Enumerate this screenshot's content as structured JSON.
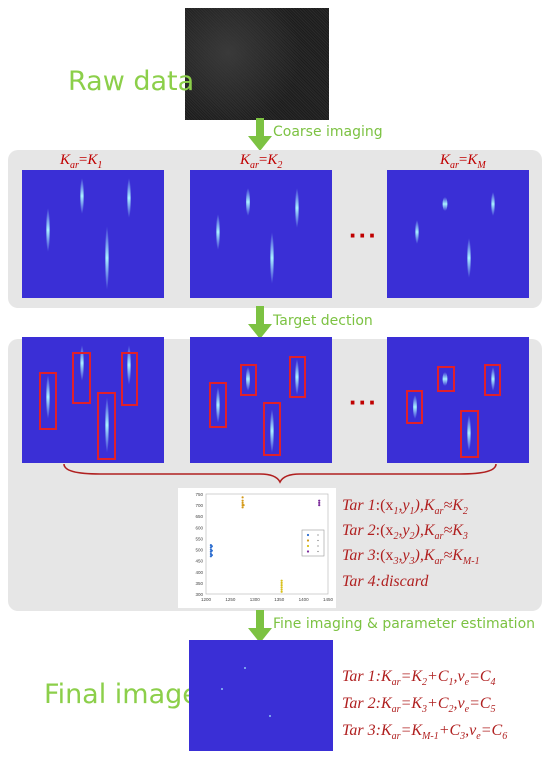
{
  "labels": {
    "raw_data": "Raw data",
    "final_image": "Final image",
    "coarse_imaging": "Coarse imaging",
    "target_detection": "Target dection",
    "fine_imaging": "Fine imaging & parameter estimation",
    "ellipsis": "···"
  },
  "k_labels": [
    {
      "K": "K",
      "ar": "ar",
      "eq": "=",
      "K2": "K",
      "sub": "1"
    },
    {
      "K": "K",
      "ar": "ar",
      "eq": "=",
      "K2": "K",
      "sub": "2"
    },
    {
      "K": "K",
      "ar": "ar",
      "eq": "=",
      "K2": "K",
      "sub": "M"
    }
  ],
  "targets": [
    {
      "name": "Tar 1",
      "coord": ":(x",
      "c1": "1",
      "mid": ",y",
      "c2": "1",
      "close": "),",
      "k": "K",
      "ks": "ar",
      "approx": "≈K",
      "kv": "2"
    },
    {
      "name": "Tar 2",
      "coord": ":(x",
      "c1": "2",
      "mid": ",y",
      "c2": "2",
      "close": "),",
      "k": "K",
      "ks": "ar",
      "approx": "≈K",
      "kv": "3"
    },
    {
      "name": "Tar 3",
      "coord": ":(x",
      "c1": "3",
      "mid": ",y",
      "c2": "3",
      "close": "),",
      "k": "K",
      "ks": "ar",
      "approx": "≈K",
      "kv": "M-1"
    },
    {
      "name": "Tar 4",
      "discard": ":discard"
    }
  ],
  "final_targets": [
    {
      "name": "Tar 1",
      "a": ":K",
      "as": "ar",
      "b": "=K",
      "bs": "2",
      "c": "+C",
      "cs": "1",
      "d": ",v",
      "ds": "e",
      "e": "=C",
      "es": "4"
    },
    {
      "name": "Tar 2",
      "a": ":K",
      "as": "ar",
      "b": "=K",
      "bs": "3",
      "c": "+C",
      "cs": "2",
      "d": ",v",
      "ds": "e",
      "e": "=C",
      "es": "5"
    },
    {
      "name": "Tar 3",
      "a": ":K",
      "as": "ar",
      "b": "=K",
      "bs": "M-1",
      "c": "+C",
      "cs": "3",
      "d": ",v",
      "ds": "e",
      "e": "=C",
      "es": "6"
    }
  ],
  "scatter": {
    "x_ticks": [
      "1200",
      "1250",
      "1300",
      "1350",
      "1400",
      "1450"
    ],
    "y_ticks": [
      "300",
      "350",
      "400",
      "450",
      "500",
      "550",
      "600",
      "650",
      "700",
      "750"
    ],
    "series": [
      {
        "color": "#2f6fd0",
        "points": [
          [
            1210,
            470
          ],
          [
            1210,
            480
          ],
          [
            1210,
            490
          ],
          [
            1210,
            500
          ],
          [
            1210,
            510
          ],
          [
            1210,
            520
          ],
          [
            1212,
            475
          ],
          [
            1212,
            495
          ],
          [
            1212,
            515
          ]
        ]
      },
      {
        "color": "#d49a1a",
        "points": [
          [
            1275,
            690
          ],
          [
            1275,
            700
          ],
          [
            1275,
            710
          ],
          [
            1275,
            720
          ],
          [
            1275,
            735
          ],
          [
            1277,
            700
          ]
        ]
      },
      {
        "color": "#d8c01a",
        "points": [
          [
            1355,
            310
          ],
          [
            1355,
            320
          ],
          [
            1355,
            330
          ],
          [
            1355,
            340
          ],
          [
            1355,
            350
          ],
          [
            1355,
            360
          ]
        ]
      },
      {
        "color": "#7a2a9a",
        "points": [
          [
            1432,
            700
          ],
          [
            1432,
            710
          ],
          [
            1432,
            720
          ]
        ]
      }
    ],
    "legend_colors": [
      "#2f6fd0",
      "#d49a1a",
      "#d8c01a",
      "#7a2a9a"
    ]
  },
  "colors": {
    "green": "#8ccf4a",
    "plot_bg": "#3a2fd6",
    "box_red": "#e0202a",
    "text_red": "#b02020"
  }
}
